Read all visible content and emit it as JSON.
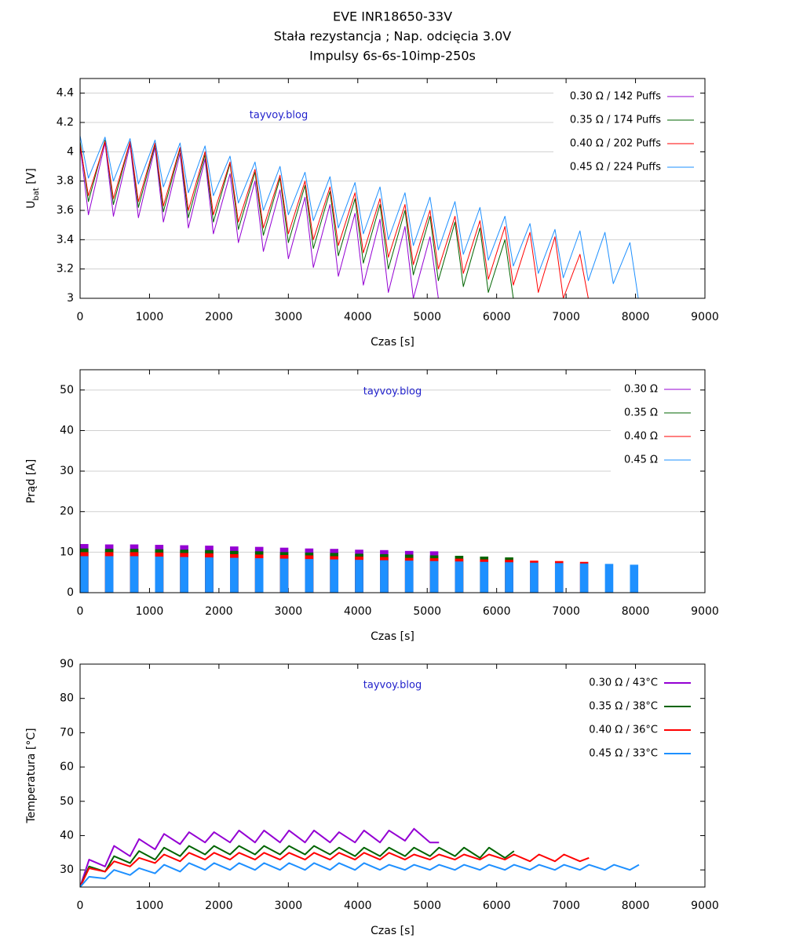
{
  "chart_data": [
    {
      "type": "line",
      "title": [
        "EVE INR18650-33V",
        "Stała rezystancja ; Nap. odcięcia 3.0V",
        "Impulsy 6s-6s-10imp-250s"
      ],
      "annotation": "tayvoy.blog",
      "x_label": "Czas [s]",
      "y_label": [
        "U",
        "bat",
        " [V]"
      ],
      "xlim": [
        0,
        9000
      ],
      "xticks": [
        0,
        1000,
        2000,
        3000,
        4000,
        5000,
        6000,
        7000,
        8000,
        9000
      ],
      "ylim": [
        3,
        4.5
      ],
      "yticks": [
        3,
        3.2,
        3.4,
        3.6,
        3.8,
        4,
        4.2,
        4.4
      ],
      "grid": true,
      "x": [
        0,
        120,
        360,
        480,
        720,
        840,
        1080,
        1200,
        1440,
        1560,
        1800,
        1920,
        2160,
        2280,
        2520,
        2640,
        2880,
        3000,
        3240,
        3360,
        3600,
        3720,
        3960,
        4080,
        4320,
        4440,
        4680,
        4800,
        5040,
        5160,
        5400,
        5520,
        5760,
        5880,
        6120,
        6240,
        6480,
        6600,
        6840,
        6960,
        7200,
        7320,
        7560,
        7680,
        7920,
        8040
      ],
      "series": [
        {
          "name": "0.30 Ω  /  142 Puffs",
          "color": "#9400d3",
          "values": [
            4.04,
            3.57,
            4.06,
            3.56,
            4.05,
            3.55,
            4.03,
            3.52,
            3.99,
            3.48,
            3.95,
            3.44,
            3.85,
            3.38,
            3.8,
            3.32,
            3.74,
            3.27,
            3.69,
            3.21,
            3.64,
            3.15,
            3.58,
            3.09,
            3.54,
            3.04,
            3.49,
            3.0,
            3.42,
            3.0,
            null,
            null,
            null,
            null,
            null,
            null,
            null,
            null,
            null,
            null,
            null,
            null,
            null,
            null,
            null,
            null
          ]
        },
        {
          "name": "0.35 Ω  /  174 Puffs",
          "color": "#006400",
          "values": [
            4.07,
            3.66,
            4.08,
            3.64,
            4.07,
            3.62,
            4.05,
            3.59,
            4.02,
            3.55,
            3.98,
            3.52,
            3.92,
            3.47,
            3.86,
            3.43,
            3.82,
            3.38,
            3.77,
            3.34,
            3.73,
            3.29,
            3.68,
            3.24,
            3.64,
            3.2,
            3.6,
            3.16,
            3.56,
            3.12,
            3.52,
            3.08,
            3.48,
            3.04,
            3.4,
            3.0,
            null,
            null,
            null,
            null,
            null,
            null,
            null,
            null,
            null,
            null
          ]
        },
        {
          "name": "0.40 Ω  /  202 Puffs",
          "color": "#ff0000",
          "values": [
            4.05,
            3.7,
            4.07,
            3.68,
            4.07,
            3.66,
            4.06,
            3.63,
            4.03,
            3.6,
            4.0,
            3.57,
            3.93,
            3.52,
            3.88,
            3.48,
            3.84,
            3.44,
            3.8,
            3.4,
            3.76,
            3.36,
            3.72,
            3.31,
            3.68,
            3.28,
            3.64,
            3.23,
            3.6,
            3.2,
            3.56,
            3.17,
            3.53,
            3.13,
            3.49,
            3.09,
            3.45,
            3.04,
            3.42,
            3.0,
            3.3,
            3.0,
            null,
            null,
            null,
            null
          ]
        },
        {
          "name": "0.45 Ω  /  224 Puffs",
          "color": "#1e90ff",
          "values": [
            4.11,
            3.82,
            4.1,
            3.8,
            4.09,
            3.78,
            4.08,
            3.76,
            4.06,
            3.72,
            4.04,
            3.7,
            3.97,
            3.65,
            3.93,
            3.6,
            3.9,
            3.57,
            3.86,
            3.53,
            3.83,
            3.48,
            3.79,
            3.44,
            3.76,
            3.4,
            3.72,
            3.36,
            3.69,
            3.33,
            3.66,
            3.3,
            3.62,
            3.26,
            3.56,
            3.22,
            3.51,
            3.17,
            3.47,
            3.14,
            3.46,
            3.12,
            3.45,
            3.1,
            3.38,
            3.0
          ]
        }
      ]
    },
    {
      "type": "bar",
      "annotation": "tayvoy.blog",
      "x_label": "Czas [s]",
      "y_label": "Prąd [A]",
      "xlim": [
        0,
        9000
      ],
      "xticks": [
        0,
        1000,
        2000,
        3000,
        4000,
        5000,
        6000,
        7000,
        8000,
        9000
      ],
      "ylim": [
        0,
        55
      ],
      "yticks": [
        0,
        10,
        20,
        30,
        40,
        50
      ],
      "grid": true,
      "x": [
        0,
        360,
        720,
        1080,
        1440,
        1800,
        2160,
        2520,
        2880,
        3240,
        3600,
        3960,
        4320,
        4680,
        5040,
        5400,
        5760,
        6120,
        6480,
        6840,
        7200,
        7560,
        7920
      ],
      "series": [
        {
          "name": "0.30 Ω",
          "color": "#9400d3",
          "values": [
            12.0,
            11.9,
            11.9,
            11.8,
            11.7,
            11.6,
            11.4,
            11.3,
            11.1,
            10.9,
            10.8,
            10.6,
            10.5,
            10.3,
            10.2,
            null,
            null,
            null,
            null,
            null,
            null,
            null,
            null
          ]
        },
        {
          "name": "0.35 Ω",
          "color": "#006400",
          "values": [
            10.9,
            10.8,
            10.8,
            10.7,
            10.6,
            10.5,
            10.3,
            10.2,
            10.0,
            9.9,
            9.8,
            9.6,
            9.5,
            9.4,
            9.2,
            9.1,
            8.9,
            8.7,
            null,
            null,
            null,
            null,
            null
          ]
        },
        {
          "name": "0.40 Ω",
          "color": "#ff0000",
          "values": [
            10.0,
            10.0,
            10.0,
            9.9,
            9.8,
            9.7,
            9.5,
            9.4,
            9.3,
            9.2,
            9.0,
            8.9,
            8.8,
            8.6,
            8.5,
            8.4,
            8.2,
            8.1,
            7.9,
            7.8,
            7.6,
            null,
            null
          ]
        },
        {
          "name": "0.45 Ω",
          "color": "#1e90ff",
          "values": [
            9.0,
            9.0,
            9.0,
            8.9,
            8.8,
            8.7,
            8.6,
            8.5,
            8.4,
            8.3,
            8.2,
            8.1,
            8.0,
            7.9,
            7.8,
            7.7,
            7.6,
            7.5,
            7.4,
            7.3,
            7.2,
            7.1,
            6.9
          ]
        }
      ]
    },
    {
      "type": "line",
      "annotation": "tayvoy.blog",
      "x_label": "Czas [s]",
      "y_label": "Temperatura [°C]",
      "xlim": [
        0,
        9000
      ],
      "xticks": [
        0,
        1000,
        2000,
        3000,
        4000,
        5000,
        6000,
        7000,
        8000,
        9000
      ],
      "ylim": [
        25,
        90
      ],
      "yticks": [
        30,
        40,
        50,
        60,
        70,
        80,
        90
      ],
      "grid": false,
      "x": [
        0,
        130,
        360,
        490,
        720,
        850,
        1080,
        1210,
        1440,
        1570,
        1800,
        1930,
        2160,
        2290,
        2520,
        2650,
        2880,
        3010,
        3240,
        3370,
        3600,
        3730,
        3960,
        4090,
        4320,
        4450,
        4680,
        4810,
        5040,
        5170,
        5400,
        5530,
        5760,
        5890,
        6120,
        6250,
        6480,
        6610,
        6840,
        6970,
        7200,
        7330,
        7560,
        7690,
        7920,
        8050
      ],
      "series": [
        {
          "name": "0.30 Ω  / 43°C",
          "color": "#9400d3",
          "values": [
            25,
            33,
            31,
            37,
            34,
            39,
            36,
            40.5,
            37.5,
            41,
            38,
            41,
            38,
            41.5,
            38,
            41.5,
            38,
            41.5,
            38,
            41.5,
            38,
            41,
            38,
            41.5,
            38,
            41.5,
            38.5,
            42,
            38,
            38,
            null,
            null,
            null,
            null,
            null,
            null,
            null,
            null,
            null,
            null,
            null,
            null,
            null,
            null,
            null,
            null
          ]
        },
        {
          "name": "0.35 Ω  / 38°C",
          "color": "#006400",
          "values": [
            25,
            31,
            29.5,
            34,
            32,
            35.5,
            33,
            36.5,
            34,
            37,
            34.5,
            37,
            34.5,
            37,
            34.5,
            37,
            34.5,
            37,
            34.5,
            37,
            34.5,
            36.5,
            34,
            36.5,
            34,
            36.5,
            34,
            36.5,
            34,
            36.5,
            34,
            36.5,
            33.5,
            36.5,
            33.5,
            35.5,
            null,
            null,
            null,
            null,
            null,
            null,
            null,
            null,
            null,
            null
          ]
        },
        {
          "name": "0.40 Ω  / 36°C",
          "color": "#ff0000",
          "values": [
            25,
            30.5,
            29.5,
            32.5,
            31,
            33.5,
            32,
            34.5,
            32.5,
            35,
            33,
            35,
            33,
            35,
            33,
            35,
            33,
            35,
            33,
            35,
            33,
            35,
            33,
            35,
            33,
            35,
            33,
            34.5,
            33,
            34.5,
            33,
            34.5,
            33,
            34.5,
            33,
            34.5,
            32.5,
            34.5,
            32.5,
            34.5,
            32.5,
            33.5,
            null,
            null,
            null,
            null
          ]
        },
        {
          "name": "0.45 Ω  / 33°C",
          "color": "#1e90ff",
          "values": [
            25,
            28,
            27.5,
            30,
            28.5,
            30.5,
            29,
            31.5,
            29.5,
            32,
            30,
            32,
            30,
            32,
            30,
            32,
            30,
            32,
            30,
            32,
            30,
            32,
            30,
            32,
            30,
            31.5,
            30,
            31.5,
            30,
            31.5,
            30,
            31.5,
            30,
            31.5,
            30,
            31.5,
            30,
            31.5,
            30,
            31.5,
            30,
            31.5,
            30,
            31.5,
            30,
            31.5
          ]
        }
      ]
    }
  ]
}
